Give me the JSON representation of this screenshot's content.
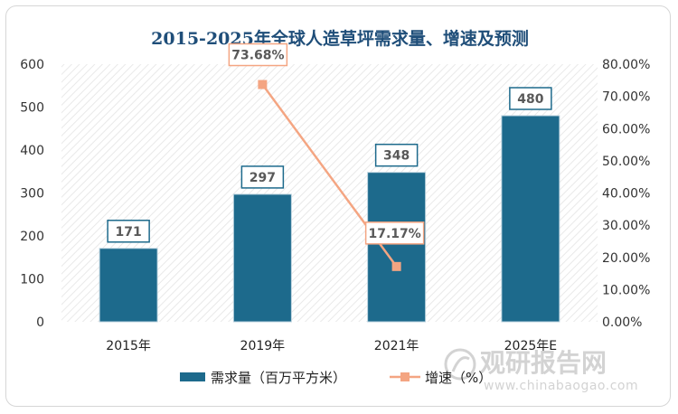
{
  "chart_data": {
    "type": "bar+line",
    "title": "2015-2025年全球人造草坪需求量、增速及预测",
    "categories": [
      "2015年",
      "2019年",
      "2021年",
      "2025年E"
    ],
    "series": [
      {
        "name": "需求量（百万平方米）",
        "type": "bar",
        "axis": "left",
        "color": "#1d6a8c",
        "values": [
          171,
          297,
          348,
          480
        ],
        "labels": [
          "171",
          "297",
          "348",
          "480"
        ]
      },
      {
        "name": "增速（%）",
        "type": "line",
        "axis": "right",
        "color": "#f4a582",
        "points": [
          {
            "category": "2019年",
            "value": 73.68,
            "label": "73.68%"
          },
          {
            "category": "2021年",
            "value": 17.17,
            "label": "17.17%"
          }
        ]
      }
    ],
    "left_axis": {
      "min": 0,
      "max": 600,
      "ticks": [
        "0",
        "100",
        "200",
        "300",
        "400",
        "500",
        "600"
      ]
    },
    "right_axis": {
      "min": 0,
      "max": 80,
      "ticks": [
        "0.00%",
        "10.00%",
        "20.00%",
        "30.00%",
        "40.00%",
        "50.00%",
        "60.00%",
        "70.00%",
        "80.00%"
      ]
    },
    "grid": false,
    "background_pattern": "diagonal-hatch",
    "legend": {
      "position": "bottom",
      "items": [
        "需求量（百万平方米）",
        "增速（%）"
      ]
    }
  },
  "watermark": {
    "text": "观研报告网",
    "url": "www.chinabaogao.com"
  }
}
